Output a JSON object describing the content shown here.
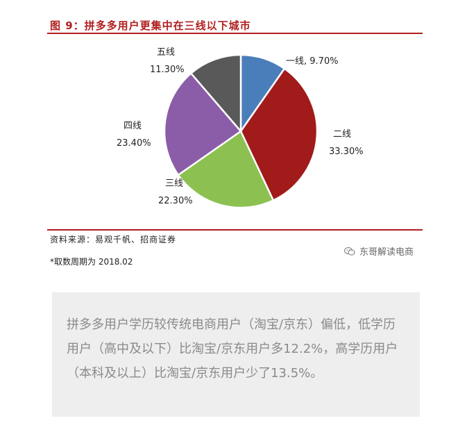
{
  "figure": {
    "title": "图 9：拼多多用户更集中在三线以下城市",
    "source": "资料来源：易观千帆、招商证券",
    "note": "*取数周期为 2018.02",
    "watermark": "东哥解读电商",
    "watermark_icon": "wechat-icon"
  },
  "chart_data": {
    "type": "pie",
    "start_angle_deg": 0,
    "direction": "clockwise",
    "slices": [
      {
        "label": "一线",
        "value": 9.7,
        "value_text": "9.70%",
        "color": "#4a7ebb"
      },
      {
        "label": "二线",
        "value": 33.3,
        "value_text": "33.30%",
        "color": "#a11b1b"
      },
      {
        "label": "三线",
        "value": 22.3,
        "value_text": "22.30%",
        "color": "#8cc152"
      },
      {
        "label": "四线",
        "value": 23.4,
        "value_text": "23.40%",
        "color": "#8b5da8"
      },
      {
        "label": "五线",
        "value": 11.3,
        "value_text": "11.30%",
        "color": "#595959"
      }
    ]
  },
  "quote": {
    "text": "拼多多用户学历较传统电商用户（淘宝/京东）偏低，低学历用户（高中及以下）比淘宝/京东用户多12.2%，高学历用户（本科及以上）比淘宝/京东用户少了13.5%。"
  }
}
